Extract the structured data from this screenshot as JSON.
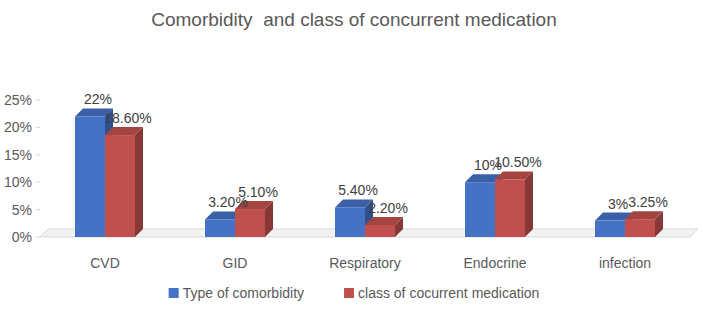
{
  "chart_data": {
    "type": "bar",
    "title": "Comorbidity  and class of concurrent medication",
    "categories": [
      "CVD",
      "GID",
      "Respiratory",
      "Endocrine",
      "infection"
    ],
    "series": [
      {
        "name": "Type of comorbidity",
        "color": "#4472c4",
        "values": [
          22,
          3.2,
          5.4,
          10,
          3
        ],
        "value_labels": [
          "22%",
          "3.20%",
          "5.40%",
          "10%",
          "3%"
        ]
      },
      {
        "name": "class of cocurrent medication",
        "color": "#c0504d",
        "values": [
          18.6,
          5.1,
          2.2,
          10.5,
          3.25
        ],
        "value_labels": [
          "18.60%",
          "5.10%",
          "2.20%",
          "10.50%",
          "3.25%"
        ]
      }
    ],
    "ylim": [
      0,
      25
    ],
    "yticks": [
      {
        "value": 0,
        "label": "0%"
      },
      {
        "value": 5,
        "label": "5%"
      },
      {
        "value": 10,
        "label": "10%"
      },
      {
        "value": 15,
        "label": "15%"
      },
      {
        "value": 20,
        "label": "20%"
      },
      {
        "value": 25,
        "label": "25%"
      }
    ],
    "grid": false,
    "legend": "bottom",
    "data_labels": true
  }
}
